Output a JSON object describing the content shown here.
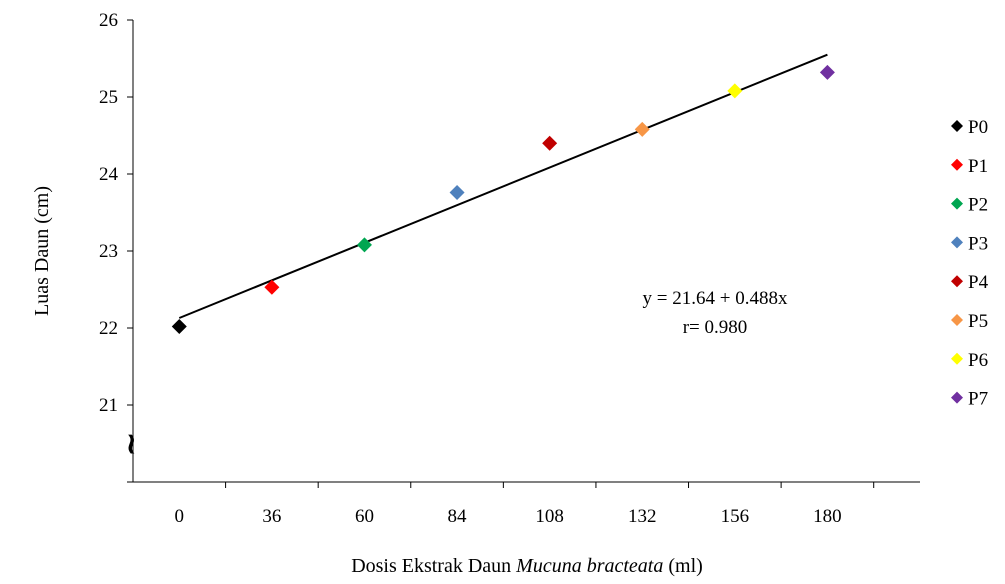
{
  "chart_data": {
    "type": "scatter",
    "categories": [
      "0",
      "36",
      "60",
      "84",
      "108",
      "132",
      "156",
      "180"
    ],
    "xlabel_prefix": "Dosis Ekstrak Daun ",
    "xlabel_italic": "Mucuna bracteata",
    "xlabel_suffix": " (ml)",
    "ylabel": "Luas Daun (cm)",
    "ylim": [
      20,
      26
    ],
    "yticks": [
      "21",
      "22",
      "23",
      "24",
      "25",
      "26"
    ],
    "axis_break_glyph": "~",
    "grid": false,
    "legend_position": "right",
    "series": [
      {
        "name": "P0",
        "x": "0",
        "y": 22.02,
        "color": "#000000"
      },
      {
        "name": "P1",
        "x": "36",
        "y": 22.53,
        "color": "#ff0000"
      },
      {
        "name": "P2",
        "x": "60",
        "y": 23.08,
        "color": "#00a651"
      },
      {
        "name": "P3",
        "x": "84",
        "y": 23.76,
        "color": "#4f81bd"
      },
      {
        "name": "P4",
        "x": "108",
        "y": 24.4,
        "color": "#c00000"
      },
      {
        "name": "P5",
        "x": "132",
        "y": 24.58,
        "color": "#f79646"
      },
      {
        "name": "P6",
        "x": "156",
        "y": 25.08,
        "color": "#ffff00"
      },
      {
        "name": "P7",
        "x": "180",
        "y": 25.32,
        "color": "#7030a0"
      }
    ],
    "trendline": {
      "y_start": 22.13,
      "y_end": 25.55,
      "color": "#000000"
    },
    "annotation_lines": [
      "y = 21.64 + 0.488x",
      "r= 0.980"
    ]
  }
}
